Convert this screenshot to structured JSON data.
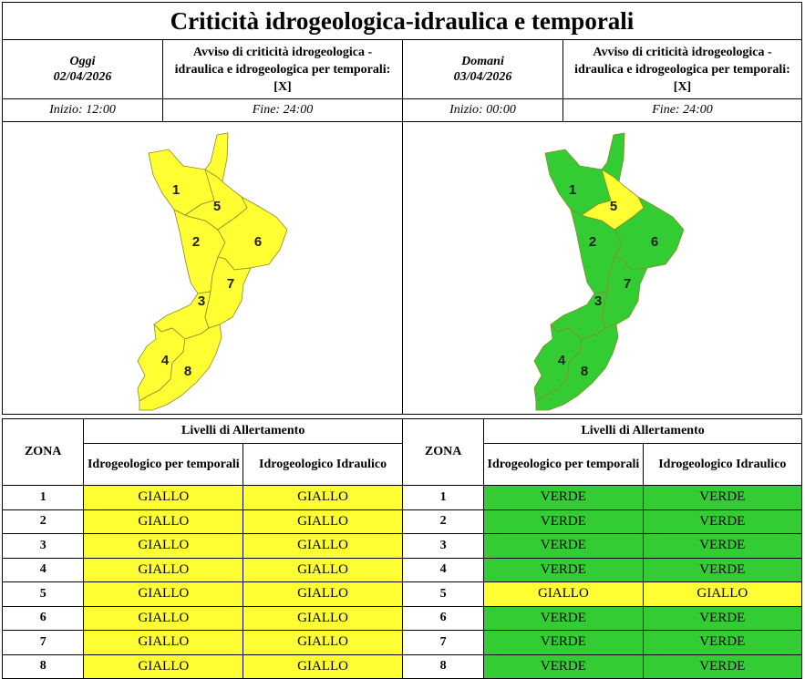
{
  "title": "Criticità idrogeologica-idraulica e temporali",
  "days": [
    {
      "day_label": "Oggi",
      "date": "02/04/2026",
      "notice": "Avviso di criticità idrogeologica - idraulica e idrogeologica per temporali: [X]",
      "start": "Inizio: 12:00",
      "end": "Fine: 24:00",
      "map_zones": {
        "1": "GIALLO",
        "2": "GIALLO",
        "3": "GIALLO",
        "4": "GIALLO",
        "5": "GIALLO",
        "6": "GIALLO",
        "7": "GIALLO",
        "8": "GIALLO"
      }
    },
    {
      "day_label": "Domani",
      "date": "03/04/2026",
      "notice": "Avviso di criticità idrogeologica - idraulica e idrogeologica per temporali: [X]",
      "start": "Inizio: 00:00",
      "end": "Fine: 24:00",
      "map_zones": {
        "1": "VERDE",
        "2": "VERDE",
        "3": "VERDE",
        "4": "VERDE",
        "5": "GIALLO",
        "6": "VERDE",
        "7": "VERDE",
        "8": "VERDE"
      }
    }
  ],
  "table": {
    "zona_header": "ZONA",
    "levels_header": "Livelli di Allertamento",
    "col1_header": "Idrogeologico per temporali",
    "col2_header": "Idrogeologico Idraulico"
  },
  "left_rows": [
    {
      "zona": "1",
      "temporali": "GIALLO",
      "idraulico": "GIALLO"
    },
    {
      "zona": "2",
      "temporali": "GIALLO",
      "idraulico": "GIALLO"
    },
    {
      "zona": "3",
      "temporali": "GIALLO",
      "idraulico": "GIALLO"
    },
    {
      "zona": "4",
      "temporali": "GIALLO",
      "idraulico": "GIALLO"
    },
    {
      "zona": "5",
      "temporali": "GIALLO",
      "idraulico": "GIALLO"
    },
    {
      "zona": "6",
      "temporali": "GIALLO",
      "idraulico": "GIALLO"
    },
    {
      "zona": "7",
      "temporali": "GIALLO",
      "idraulico": "GIALLO"
    },
    {
      "zona": "8",
      "temporali": "GIALLO",
      "idraulico": "GIALLO"
    }
  ],
  "right_rows": [
    {
      "zona": "1",
      "temporali": "VERDE",
      "idraulico": "VERDE"
    },
    {
      "zona": "2",
      "temporali": "VERDE",
      "idraulico": "VERDE"
    },
    {
      "zona": "3",
      "temporali": "VERDE",
      "idraulico": "VERDE"
    },
    {
      "zona": "4",
      "temporali": "VERDE",
      "idraulico": "VERDE"
    },
    {
      "zona": "5",
      "temporali": "GIALLO",
      "idraulico": "GIALLO"
    },
    {
      "zona": "6",
      "temporali": "VERDE",
      "idraulico": "VERDE"
    },
    {
      "zona": "7",
      "temporali": "VERDE",
      "idraulico": "VERDE"
    },
    {
      "zona": "8",
      "temporali": "VERDE",
      "idraulico": "VERDE"
    }
  ],
  "colors": {
    "GIALLO": "#ffff33",
    "VERDE": "#33cc33",
    "border": "#000000"
  }
}
